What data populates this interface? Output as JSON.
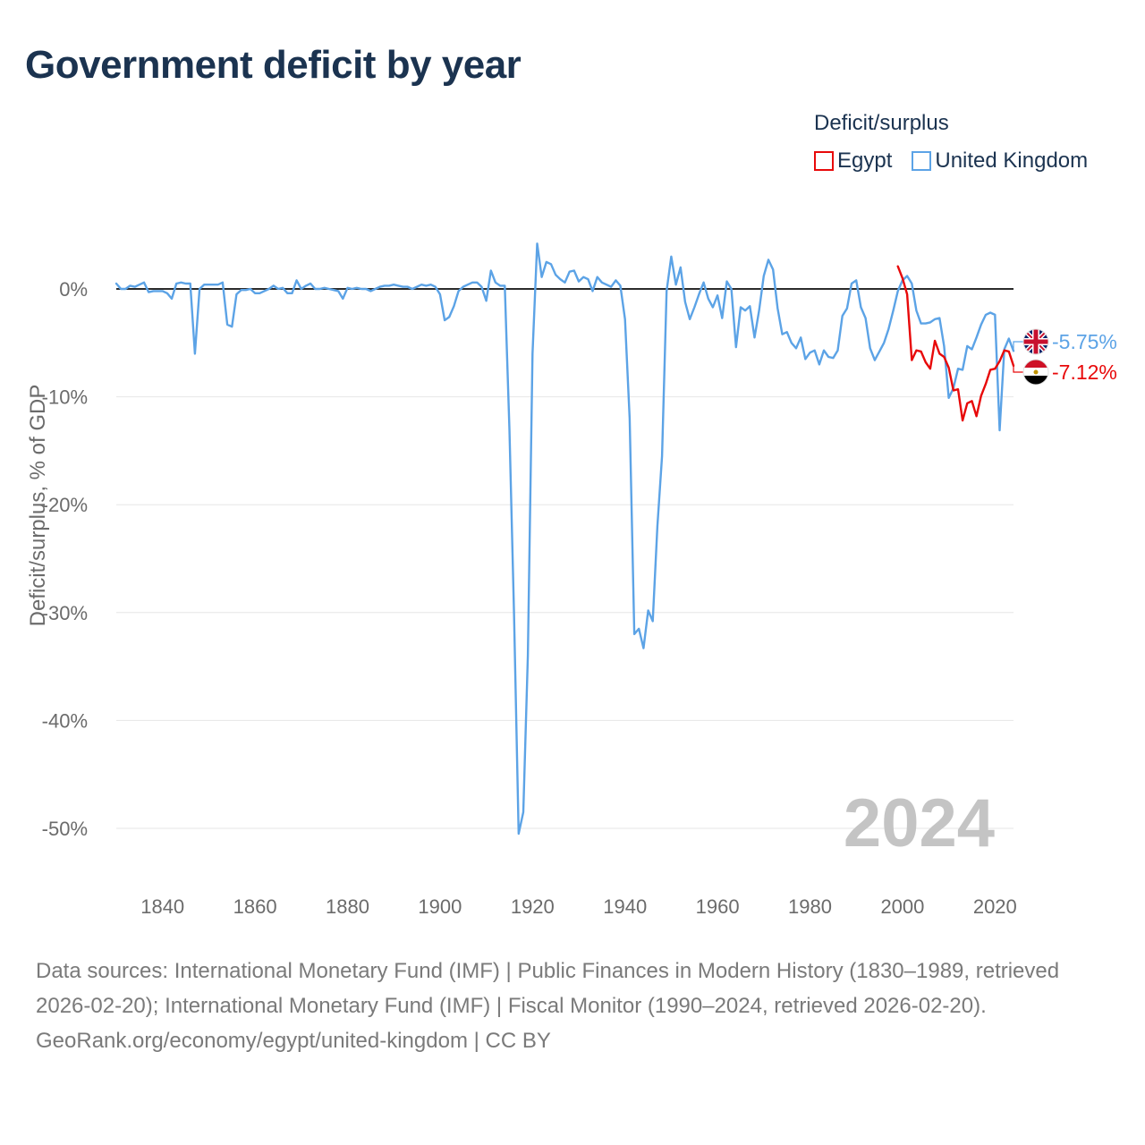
{
  "title": "Government deficit by year",
  "legend": {
    "title": "Deficit/surplus",
    "items": [
      {
        "label": "Egypt",
        "color": "#e8090a"
      },
      {
        "label": "United Kingdom",
        "color": "#5ca3e6"
      }
    ]
  },
  "footer": {
    "sources": "Data sources: International Monetary Fund (IMF) | Public Finances in Modern History (1830–1989, retrieved 2026-02-20); International Monetary Fund (IMF) | Fiscal Monitor (1990–2024, retrieved 2026-02-20).",
    "attribution": "GeoRank.org/economy/egypt/united-kingdom | CC BY"
  },
  "chart_data": {
    "type": "line",
    "title": "Government deficit by year",
    "xlabel": "",
    "ylabel": "Deficit/surplus, % of GDP",
    "xlim": [
      1830,
      2024
    ],
    "ylim": [
      -55,
      5
    ],
    "x_ticks": [
      1840,
      1860,
      1880,
      1900,
      1920,
      1940,
      1960,
      1980,
      2000,
      2020
    ],
    "y_ticks": [
      0,
      -10,
      -20,
      -30,
      -40,
      -50
    ],
    "y_tick_labels": [
      "0%",
      "-10%",
      "-20%",
      "-30%",
      "-40%",
      "-50%"
    ],
    "grid": true,
    "zero_line": true,
    "year_watermark": "2024",
    "legend_position": "top-right",
    "series": [
      {
        "name": "United Kingdom",
        "color": "#5ca3e6",
        "end_label": "-5.75%",
        "x": [
          1830,
          1831,
          1832,
          1833,
          1834,
          1835,
          1836,
          1837,
          1838,
          1839,
          1840,
          1841,
          1842,
          1843,
          1844,
          1845,
          1846,
          1847,
          1848,
          1849,
          1850,
          1851,
          1852,
          1853,
          1854,
          1855,
          1856,
          1857,
          1858,
          1859,
          1860,
          1861,
          1862,
          1863,
          1864,
          1865,
          1866,
          1867,
          1868,
          1869,
          1870,
          1871,
          1872,
          1873,
          1874,
          1875,
          1876,
          1877,
          1878,
          1879,
          1880,
          1881,
          1882,
          1883,
          1884,
          1885,
          1886,
          1887,
          1888,
          1889,
          1890,
          1891,
          1892,
          1893,
          1894,
          1895,
          1896,
          1897,
          1898,
          1899,
          1900,
          1901,
          1902,
          1903,
          1904,
          1905,
          1906,
          1907,
          1908,
          1909,
          1910,
          1911,
          1912,
          1913,
          1914,
          1915,
          1916,
          1917,
          1918,
          1919,
          1920,
          1921,
          1922,
          1923,
          1924,
          1925,
          1926,
          1927,
          1928,
          1929,
          1930,
          1931,
          1932,
          1933,
          1934,
          1935,
          1936,
          1937,
          1938,
          1939,
          1940,
          1941,
          1942,
          1943,
          1944,
          1945,
          1946,
          1947,
          1948,
          1949,
          1950,
          1951,
          1952,
          1953,
          1954,
          1955,
          1956,
          1957,
          1958,
          1959,
          1960,
          1961,
          1962,
          1963,
          1964,
          1965,
          1966,
          1967,
          1968,
          1969,
          1970,
          1971,
          1972,
          1973,
          1974,
          1975,
          1976,
          1977,
          1978,
          1979,
          1980,
          1981,
          1982,
          1983,
          1984,
          1985,
          1986,
          1987,
          1988,
          1989,
          1990,
          1991,
          1992,
          1993,
          1994,
          1995,
          1996,
          1997,
          1998,
          1999,
          2000,
          2001,
          2002,
          2003,
          2004,
          2005,
          2006,
          2007,
          2008,
          2009,
          2010,
          2011,
          2012,
          2013,
          2014,
          2015,
          2016,
          2017,
          2018,
          2019,
          2020,
          2021,
          2022,
          2023,
          2024
        ],
        "values": [
          0.5,
          0.0,
          0.0,
          0.3,
          0.2,
          0.4,
          0.6,
          -0.3,
          -0.2,
          -0.2,
          -0.2,
          -0.4,
          -0.9,
          0.5,
          0.6,
          0.5,
          0.5,
          -6.0,
          0.0,
          0.4,
          0.4,
          0.4,
          0.4,
          0.6,
          -3.3,
          -3.5,
          -0.5,
          -0.1,
          -0.1,
          0.0,
          -0.4,
          -0.4,
          -0.2,
          0.0,
          0.3,
          0.0,
          0.1,
          -0.4,
          -0.4,
          0.8,
          0.0,
          0.3,
          0.5,
          0.0,
          0.0,
          0.1,
          0.0,
          -0.1,
          -0.2,
          -0.9,
          0.1,
          0.0,
          0.1,
          0.0,
          0.0,
          -0.2,
          0.0,
          0.2,
          0.3,
          0.3,
          0.4,
          0.3,
          0.2,
          0.2,
          0.0,
          0.2,
          0.4,
          0.3,
          0.4,
          0.2,
          -0.5,
          -2.9,
          -2.6,
          -1.6,
          -0.2,
          0.2,
          0.4,
          0.6,
          0.6,
          0.2,
          -1.1,
          1.7,
          0.6,
          0.3,
          0.3,
          -13.0,
          -30.0,
          -50.5,
          -48.5,
          -34.0,
          -6.0,
          4.2,
          1.1,
          2.5,
          2.3,
          1.3,
          0.9,
          0.6,
          1.6,
          1.7,
          0.7,
          1.1,
          0.9,
          -0.2,
          1.1,
          0.6,
          0.4,
          0.2,
          0.8,
          0.3,
          -2.8,
          -12.0,
          -32.0,
          -31.5,
          -33.3,
          -29.8,
          -30.8,
          -22.0,
          -15.5,
          -0.2,
          3.0,
          0.4,
          2.0,
          -1.2,
          -2.8,
          -1.7,
          -0.5,
          0.6,
          -0.9,
          -1.7,
          -0.6,
          -2.7,
          0.7,
          0.0,
          -5.4,
          -1.7,
          -2.0,
          -1.6,
          -4.5,
          -2.0,
          1.2,
          2.7,
          1.8,
          -1.8,
          -4.2,
          -4.0,
          -5.0,
          -5.5,
          -4.5,
          -6.5,
          -5.9,
          -5.7,
          -7.0,
          -5.7,
          -6.3,
          -6.4,
          -5.7,
          -2.5,
          -1.8,
          0.5,
          0.8,
          -1.7,
          -2.7,
          -5.5,
          -6.6,
          -5.8,
          -5.0,
          -3.7,
          -2.0,
          -0.2,
          0.8,
          1.2,
          0.5,
          -2.0,
          -3.2,
          -3.2,
          -3.1,
          -2.8,
          -2.7,
          -5.3,
          -10.1,
          -9.2,
          -7.4,
          -7.5,
          -5.3,
          -5.6,
          -4.5,
          -3.3,
          -2.4,
          -2.2,
          -2.4,
          -13.1,
          -5.6,
          -4.6,
          -5.75
        ]
      },
      {
        "name": "Egypt",
        "color": "#e8090a",
        "end_label": "-7.12%",
        "x": [
          1999,
          2000,
          2001,
          2002,
          2003,
          2004,
          2005,
          2006,
          2007,
          2008,
          2009,
          2010,
          2011,
          2012,
          2013,
          2014,
          2015,
          2016,
          2017,
          2018,
          2019,
          2020,
          2021,
          2022,
          2023,
          2024
        ],
        "values": [
          2.1,
          1.0,
          -0.5,
          -6.6,
          -5.7,
          -5.8,
          -6.8,
          -7.4,
          -4.8,
          -6.0,
          -6.3,
          -7.3,
          -9.4,
          -9.3,
          -12.2,
          -10.6,
          -10.4,
          -11.8,
          -9.9,
          -8.8,
          -7.5,
          -7.4,
          -6.7,
          -5.7,
          -5.8,
          -7.12
        ]
      }
    ]
  }
}
